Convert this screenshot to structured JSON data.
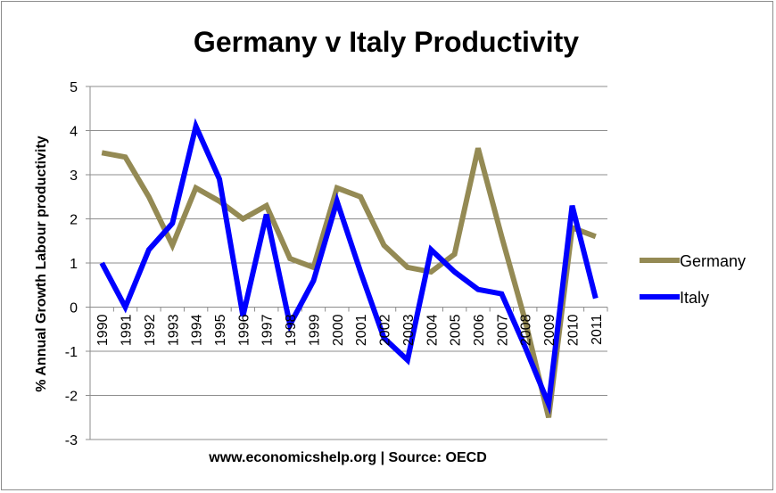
{
  "chart_data": {
    "type": "line",
    "title": "Germany v Italy Productivity",
    "xlabel": "www.economicshelp.org | Source: OECD",
    "ylabel": "% Annual Growth Labour productivity",
    "ylim": [
      -3,
      5
    ],
    "yticks": [
      -3,
      -2,
      -1,
      0,
      1,
      2,
      3,
      4,
      5
    ],
    "grid": true,
    "legend_position": "right",
    "categories": [
      "1990",
      "1991",
      "1992",
      "1993",
      "1994",
      "1995",
      "1996",
      "1997",
      "1998",
      "1999",
      "2000",
      "2001",
      "2002",
      "2003",
      "2004",
      "2005",
      "2006",
      "2007",
      "2008",
      "2009",
      "2010",
      "2011"
    ],
    "series": [
      {
        "name": "Germany",
        "color": "#948a54",
        "values": [
          3.5,
          3.4,
          2.5,
          1.4,
          2.7,
          2.4,
          2.0,
          2.3,
          1.1,
          0.9,
          2.7,
          2.5,
          1.4,
          0.9,
          0.8,
          1.2,
          3.6,
          1.6,
          -0.3,
          -2.5,
          1.8,
          1.6
        ]
      },
      {
        "name": "Italy",
        "color": "#0000ff",
        "values": [
          1.0,
          0.0,
          1.3,
          1.9,
          4.1,
          2.9,
          -0.2,
          2.1,
          -0.4,
          0.6,
          2.4,
          0.8,
          -0.7,
          -1.2,
          1.3,
          0.8,
          0.4,
          0.3,
          -0.9,
          -2.2,
          2.3,
          0.2
        ]
      }
    ]
  }
}
